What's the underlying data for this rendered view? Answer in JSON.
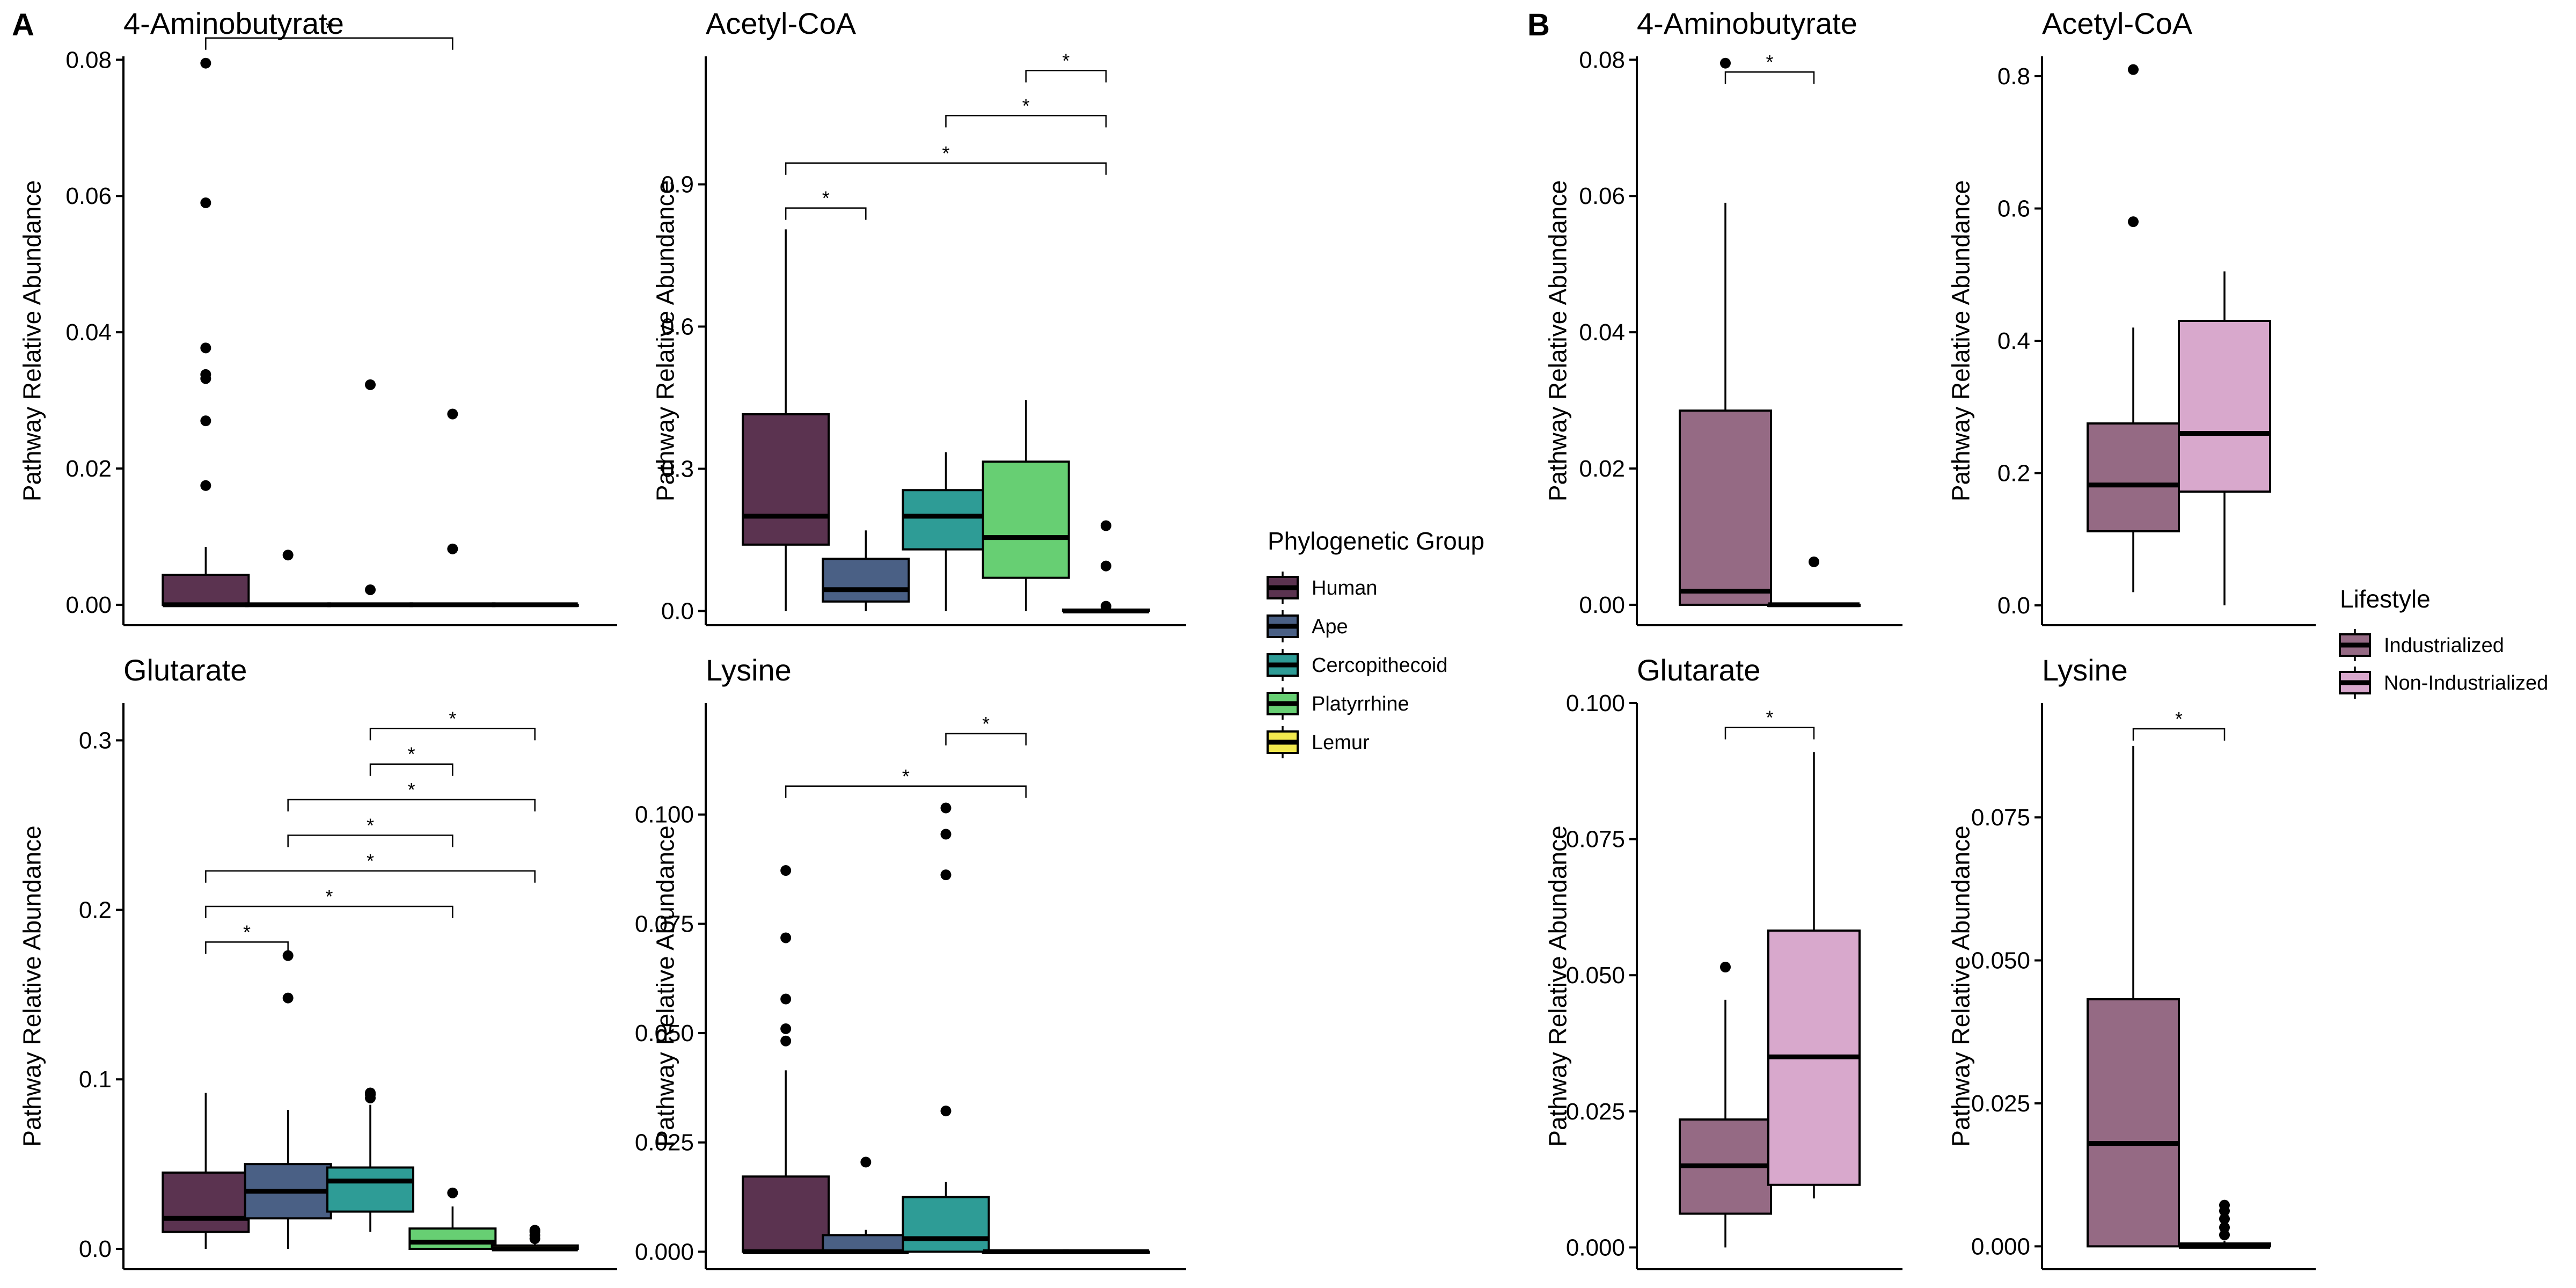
{
  "panel_letters": [
    "A",
    "B"
  ],
  "legends": [
    {
      "title": "Phylogenetic Group",
      "items": [
        {
          "label": "Human",
          "color": "#5b3350"
        },
        {
          "label": "Ape",
          "color": "#4a6085"
        },
        {
          "label": "Cercopithecoid",
          "color": "#2e9c96"
        },
        {
          "label": "Platyrrhine",
          "color": "#67cf73"
        },
        {
          "label": "Lemur",
          "color": "#f2e94e"
        }
      ]
    },
    {
      "title": "Lifestyle",
      "items": [
        {
          "label": "Industrialized",
          "color": "#956a84"
        },
        {
          "label": "Non-Industrialized",
          "color": "#d8a8cc"
        }
      ]
    }
  ],
  "chart_data": [
    {
      "panel": "A",
      "type": "box",
      "title": "4-Aminobutyrate",
      "ylabel": "Pathway Relative Abundance",
      "ylim": [
        -0.003,
        0.0805
      ],
      "yticks": [
        0.0,
        0.02,
        0.04,
        0.06,
        0.08
      ],
      "ytick_labels": [
        "0.00",
        "0.02",
        "0.04",
        "0.06",
        "0.08"
      ],
      "groups": [
        {
          "name": "Human",
          "color": "#5b3350",
          "q1": 0.0,
          "median": 0.0,
          "q3": 0.0044,
          "whisker_low": 0.0,
          "whisker_high": 0.0085,
          "outliers": [
            0.0175,
            0.027,
            0.0332,
            0.0338,
            0.0377,
            0.059,
            0.0795
          ]
        },
        {
          "name": "Ape",
          "color": "#4a6085",
          "q1": 0.0,
          "median": 0.0,
          "q3": 0.0,
          "whisker_low": 0.0,
          "whisker_high": 0.0,
          "outliers": [
            0.0073
          ]
        },
        {
          "name": "Cercopithecoid",
          "color": "#2e9c96",
          "q1": 0.0,
          "median": 0.0,
          "q3": 0.0,
          "whisker_low": 0.0,
          "whisker_high": 0.0,
          "outliers": [
            0.0022,
            0.0323
          ]
        },
        {
          "name": "Platyrrhine",
          "color": "#67cf73",
          "q1": 0.0,
          "median": 0.0,
          "q3": 0.0,
          "whisker_low": 0.0,
          "whisker_high": 0.0,
          "outliers": [
            0.0082,
            0.028
          ]
        },
        {
          "name": "Lemur",
          "color": "#f2e94e",
          "q1": 0.0,
          "median": 0.0,
          "q3": 0.0,
          "whisker_low": 0.0,
          "whisker_high": 0.0,
          "outliers": []
        }
      ],
      "significance": [
        {
          "from": 0,
          "to": 3,
          "y": 0.0832,
          "label": "*"
        }
      ]
    },
    {
      "panel": "A",
      "type": "box",
      "title": "Acetyl-CoA",
      "ylabel": "Pathway Relative Abundance",
      "ylim": [
        -0.03,
        1.17
      ],
      "yticks": [
        0.0,
        0.3,
        0.6,
        0.9
      ],
      "ytick_labels": [
        "0.0",
        "0.3",
        "0.6",
        "0.9"
      ],
      "groups": [
        {
          "name": "Human",
          "color": "#5b3350",
          "q1": 0.14,
          "median": 0.2,
          "q3": 0.415,
          "whisker_low": 0.0,
          "whisker_high": 0.805,
          "outliers": []
        },
        {
          "name": "Ape",
          "color": "#4a6085",
          "q1": 0.02,
          "median": 0.045,
          "q3": 0.11,
          "whisker_low": 0.0,
          "whisker_high": 0.17,
          "outliers": []
        },
        {
          "name": "Cercopithecoid",
          "color": "#2e9c96",
          "q1": 0.13,
          "median": 0.2,
          "q3": 0.255,
          "whisker_low": 0.0,
          "whisker_high": 0.335,
          "outliers": []
        },
        {
          "name": "Platyrrhine",
          "color": "#67cf73",
          "q1": 0.07,
          "median": 0.155,
          "q3": 0.315,
          "whisker_low": 0.0,
          "whisker_high": 0.445,
          "outliers": []
        },
        {
          "name": "Lemur",
          "color": "#f2e94e",
          "q1": 0.0,
          "median": 0.0,
          "q3": 0.003,
          "whisker_low": 0.0,
          "whisker_high": 0.006,
          "outliers": [
            0.01,
            0.095,
            0.18
          ]
        }
      ],
      "significance": [
        {
          "from": 0,
          "to": 1,
          "y": 0.85,
          "label": "*"
        },
        {
          "from": 0,
          "to": 4,
          "y": 0.945,
          "label": "*"
        },
        {
          "from": 2,
          "to": 4,
          "y": 1.045,
          "label": "*"
        },
        {
          "from": 3,
          "to": 4,
          "y": 1.14,
          "label": "*"
        }
      ]
    },
    {
      "panel": "A",
      "type": "box",
      "title": "Glutarate",
      "ylabel": "Pathway Relative Abundance",
      "ylim": [
        -0.012,
        0.322
      ],
      "yticks": [
        0.0,
        0.1,
        0.2,
        0.3
      ],
      "ytick_labels": [
        "0.0",
        "0.1",
        "0.2",
        "0.3"
      ],
      "groups": [
        {
          "name": "Human",
          "color": "#5b3350",
          "q1": 0.01,
          "median": 0.018,
          "q3": 0.045,
          "whisker_low": 0.0,
          "whisker_high": 0.092,
          "outliers": []
        },
        {
          "name": "Ape",
          "color": "#4a6085",
          "q1": 0.018,
          "median": 0.034,
          "q3": 0.05,
          "whisker_low": 0.0,
          "whisker_high": 0.082,
          "outliers": [
            0.148,
            0.173
          ]
        },
        {
          "name": "Cercopithecoid",
          "color": "#2e9c96",
          "q1": 0.022,
          "median": 0.04,
          "q3": 0.048,
          "whisker_low": 0.01,
          "whisker_high": 0.085,
          "outliers": [
            0.089,
            0.091,
            0.092
          ]
        },
        {
          "name": "Platyrrhine",
          "color": "#67cf73",
          "q1": 0.0,
          "median": 0.004,
          "q3": 0.012,
          "whisker_low": 0.0,
          "whisker_high": 0.025,
          "outliers": [
            0.033
          ]
        },
        {
          "name": "Lemur",
          "color": "#f2e94e",
          "q1": 0.0,
          "median": 0.0,
          "q3": 0.002,
          "whisker_low": 0.0,
          "whisker_high": 0.004,
          "outliers": [
            0.006,
            0.008,
            0.01,
            0.011
          ]
        }
      ],
      "significance": [
        {
          "from": 0,
          "to": 1,
          "y": 0.181,
          "label": "*"
        },
        {
          "from": 0,
          "to": 3,
          "y": 0.202,
          "label": "*"
        },
        {
          "from": 0,
          "to": 4,
          "y": 0.223,
          "label": "*"
        },
        {
          "from": 1,
          "to": 3,
          "y": 0.244,
          "label": "*"
        },
        {
          "from": 1,
          "to": 4,
          "y": 0.265,
          "label": "*"
        },
        {
          "from": 2,
          "to": 3,
          "y": 0.286,
          "label": "*"
        },
        {
          "from": 2,
          "to": 4,
          "y": 0.307,
          "label": "*"
        }
      ]
    },
    {
      "panel": "A",
      "type": "box",
      "title": "Lysine",
      "ylabel": "Pathway Relative Abundance",
      "ylim": [
        -0.004,
        0.1255
      ],
      "yticks": [
        0.0,
        0.025,
        0.05,
        0.075,
        0.1
      ],
      "ytick_labels": [
        "0.000",
        "0.025",
        "0.050",
        "0.075",
        "0.100"
      ],
      "groups": [
        {
          "name": "Human",
          "color": "#5b3350",
          "q1": 0.0,
          "median": 0.0,
          "q3": 0.0172,
          "whisker_low": 0.0,
          "whisker_high": 0.0415,
          "outliers": [
            0.0482,
            0.051,
            0.0578,
            0.0718,
            0.0872
          ]
        },
        {
          "name": "Ape",
          "color": "#4a6085",
          "q1": 0.0,
          "median": 0.0,
          "q3": 0.0038,
          "whisker_low": 0.0,
          "whisker_high": 0.005,
          "outliers": [
            0.0205
          ]
        },
        {
          "name": "Cercopithecoid",
          "color": "#2e9c96",
          "q1": 0.0,
          "median": 0.003,
          "q3": 0.0125,
          "whisker_low": 0.0,
          "whisker_high": 0.016,
          "outliers": [
            0.0322,
            0.0862,
            0.0955,
            0.1015
          ]
        },
        {
          "name": "Platyrrhine",
          "color": "#67cf73",
          "q1": 0.0,
          "median": 0.0,
          "q3": 0.0,
          "whisker_low": 0.0,
          "whisker_high": 0.0,
          "outliers": []
        },
        {
          "name": "Lemur",
          "color": "#f2e94e",
          "q1": 0.0,
          "median": 0.0,
          "q3": 0.0,
          "whisker_low": 0.0,
          "whisker_high": 0.0,
          "outliers": []
        }
      ],
      "significance": [
        {
          "from": 0,
          "to": 3,
          "y": 0.1065,
          "label": "*"
        },
        {
          "from": 2,
          "to": 3,
          "y": 0.1185,
          "label": "*"
        }
      ]
    },
    {
      "panel": "B",
      "type": "box",
      "title": "4-Aminobutyrate",
      "ylabel": "Pathway Relative Abundance",
      "ylim": [
        -0.003,
        0.0805
      ],
      "yticks": [
        0.0,
        0.02,
        0.04,
        0.06,
        0.08
      ],
      "ytick_labels": [
        "0.00",
        "0.02",
        "0.04",
        "0.06",
        "0.08"
      ],
      "groups": [
        {
          "name": "Industrialized",
          "color": "#956a84",
          "q1": 0.0,
          "median": 0.002,
          "q3": 0.0285,
          "whisker_low": 0.0,
          "whisker_high": 0.059,
          "outliers": [
            0.0795
          ]
        },
        {
          "name": "Non-Industrialized",
          "color": "#d8a8cc",
          "q1": 0.0,
          "median": 0.0,
          "q3": 0.0,
          "whisker_low": 0.0,
          "whisker_high": 0.0,
          "outliers": [
            0.0063
          ]
        }
      ],
      "significance": [
        {
          "from": 0,
          "to": 1,
          "y": 0.0782,
          "label": "*"
        }
      ]
    },
    {
      "panel": "B",
      "type": "box",
      "title": "Acetyl-CoA",
      "ylabel": "Pathway Relative Abundance",
      "ylim": [
        -0.03,
        0.83
      ],
      "yticks": [
        0.0,
        0.2,
        0.4,
        0.6,
        0.8
      ],
      "ytick_labels": [
        "0.0",
        "0.2",
        "0.4",
        "0.6",
        "0.8"
      ],
      "groups": [
        {
          "name": "Industrialized",
          "color": "#956a84",
          "q1": 0.112,
          "median": 0.182,
          "q3": 0.275,
          "whisker_low": 0.02,
          "whisker_high": 0.42,
          "outliers": [
            0.58,
            0.81
          ]
        },
        {
          "name": "Non-Industrialized",
          "color": "#d8a8cc",
          "q1": 0.172,
          "median": 0.26,
          "q3": 0.43,
          "whisker_low": 0.0,
          "whisker_high": 0.505,
          "outliers": []
        }
      ],
      "significance": []
    },
    {
      "panel": "B",
      "type": "box",
      "title": "Glutarate",
      "ylabel": "Pathway Relative Abundance",
      "ylim": [
        -0.004,
        0.1
      ],
      "yticks": [
        0.0,
        0.025,
        0.05,
        0.075,
        0.1
      ],
      "ytick_labels": [
        "0.000",
        "0.025",
        "0.050",
        "0.075",
        "0.100"
      ],
      "groups": [
        {
          "name": "Industrialized",
          "color": "#956a84",
          "q1": 0.0062,
          "median": 0.015,
          "q3": 0.0235,
          "whisker_low": 0.0,
          "whisker_high": 0.0455,
          "outliers": [
            0.0515
          ]
        },
        {
          "name": "Non-Industrialized",
          "color": "#d8a8cc",
          "q1": 0.0115,
          "median": 0.035,
          "q3": 0.0582,
          "whisker_low": 0.009,
          "whisker_high": 0.091,
          "outliers": []
        }
      ],
      "significance": [
        {
          "from": 0,
          "to": 1,
          "y": 0.0955,
          "label": "*"
        }
      ]
    },
    {
      "panel": "B",
      "type": "box",
      "title": "Lysine",
      "ylabel": "Pathway Relative Abundance",
      "ylim": [
        -0.004,
        0.095
      ],
      "yticks": [
        0.0,
        0.025,
        0.05,
        0.075
      ],
      "ytick_labels": [
        "0.000",
        "0.025",
        "0.050",
        "0.075"
      ],
      "groups": [
        {
          "name": "Industrialized",
          "color": "#956a84",
          "q1": 0.0,
          "median": 0.018,
          "q3": 0.0432,
          "whisker_low": 0.0,
          "whisker_high": 0.0875,
          "outliers": []
        },
        {
          "name": "Non-Industrialized",
          "color": "#d8a8cc",
          "q1": 0.0,
          "median": 0.0,
          "q3": 0.0005,
          "whisker_low": 0.0,
          "whisker_high": 0.001,
          "outliers": [
            0.002,
            0.0033,
            0.0048,
            0.0062,
            0.0072
          ]
        }
      ],
      "significance": [
        {
          "from": 0,
          "to": 1,
          "y": 0.0905,
          "label": "*"
        }
      ]
    }
  ]
}
